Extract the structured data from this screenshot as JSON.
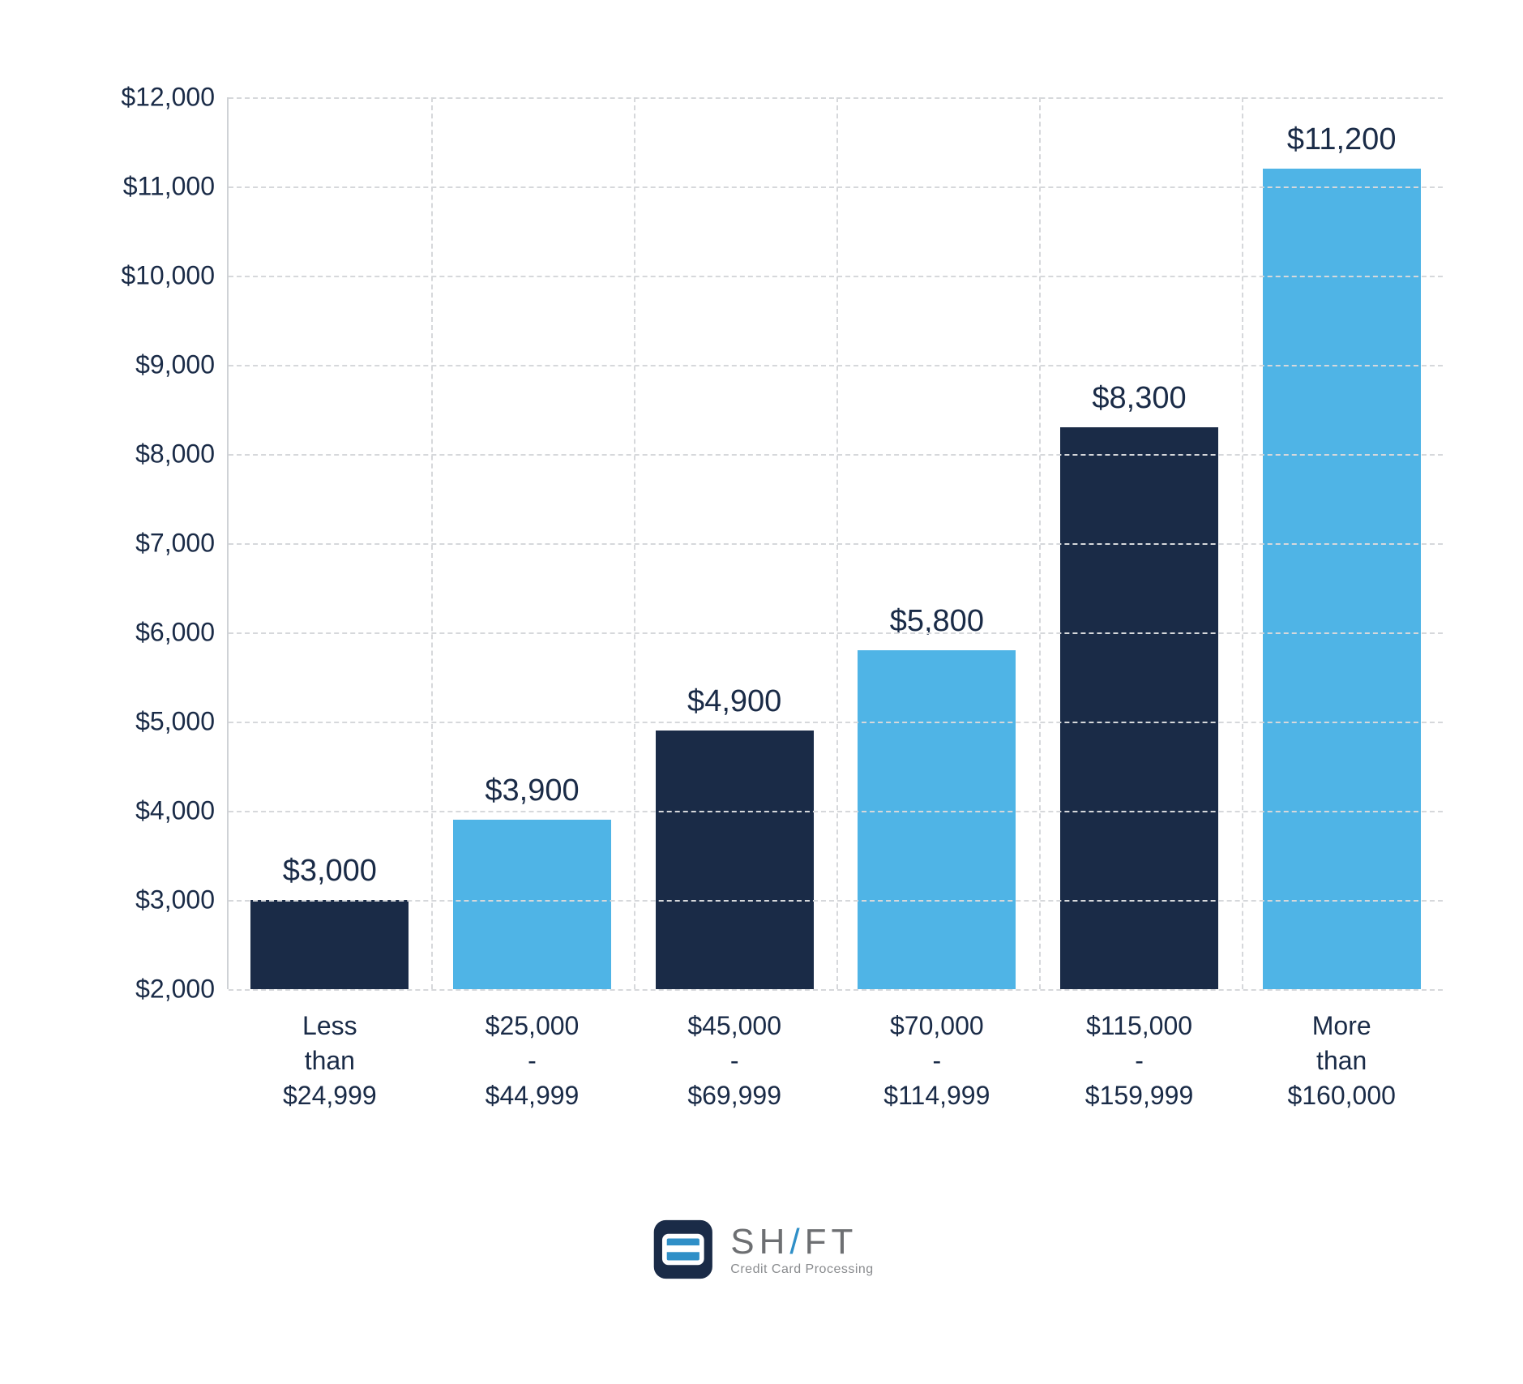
{
  "chart": {
    "type": "bar",
    "ylim": [
      2000,
      12000
    ],
    "ytick_step": 1000,
    "ytick_labels": [
      "$2,000",
      "$3,000",
      "$4,000",
      "$5,000",
      "$6,000",
      "$7,000",
      "$8,000",
      "$9,000",
      "$10,000",
      "$11,000",
      "$12,000"
    ],
    "categories": [
      "Less than\n$24,999",
      "$25,000 -\n$44,999",
      "$45,000 -\n$69,999",
      "$70,000 -\n$114,999",
      "$115,000 -\n$159,999",
      "More than\n$160,000"
    ],
    "values": [
      3000,
      3900,
      4900,
      5800,
      8300,
      11200
    ],
    "value_labels": [
      "$3,000",
      "$3,900",
      "$4,900",
      "$5,800",
      "$8,300",
      "$11,200"
    ],
    "bar_colors": [
      "#1a2b47",
      "#4fb4e6",
      "#1a2b47",
      "#4fb4e6",
      "#1a2b47",
      "#4fb4e6"
    ],
    "background_color": "#ffffff",
    "grid_color": "#d6d8db",
    "axis_color": "#cfd2d6",
    "text_color": "#1a2b47",
    "ytick_fontsize": 32,
    "xtick_fontsize": 32,
    "value_label_fontsize": 38,
    "bar_width": 0.78
  },
  "logo": {
    "brand_part1": "SH",
    "brand_slash": "/",
    "brand_part2": "FT",
    "tagline": "Credit Card Processing",
    "mark_color_dark": "#1a2b47",
    "mark_color_accent": "#2f8fc7",
    "text_color": "#6d6f72"
  }
}
